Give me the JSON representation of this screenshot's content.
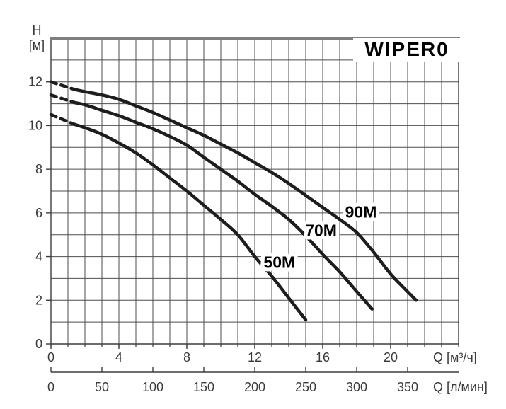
{
  "title": "WIPER0",
  "axes": {
    "y": {
      "name_line1": "H",
      "name_line2": "[м]",
      "ticks": [
        0,
        2,
        4,
        6,
        8,
        10,
        12
      ],
      "min": 0,
      "max": 14,
      "grid_step": 1
    },
    "x_m3h": {
      "unit_label": "Q [м³/ч]",
      "ticks": [
        0,
        4,
        8,
        12,
        16,
        20
      ],
      "min": 0,
      "max": 24,
      "grid_step": 1
    },
    "x_lmin": {
      "unit_label": "Q [л/мин]",
      "ticks": [
        0,
        50,
        100,
        150,
        200,
        250,
        300,
        350
      ],
      "lmin_per_m3h": 16.6667
    }
  },
  "chart_data": {
    "type": "line",
    "title": "WIPER0",
    "xlabel": "Q [м³/ч]",
    "xlabel_secondary": "Q [л/мин]",
    "ylabel": "H [м]",
    "xlim": [
      0,
      24
    ],
    "ylim": [
      0,
      14
    ],
    "grid": true,
    "legend_position": "inline-curve-labels",
    "series": [
      {
        "name": "50M",
        "dashed_lead": [
          [
            0,
            10.5
          ],
          [
            1.4,
            10.05
          ]
        ],
        "points": [
          [
            1.4,
            10.05
          ],
          [
            2,
            9.9
          ],
          [
            3,
            9.6
          ],
          [
            4,
            9.2
          ],
          [
            5,
            8.75
          ],
          [
            6,
            8.2
          ],
          [
            7,
            7.6
          ],
          [
            8,
            7.0
          ],
          [
            9,
            6.35
          ],
          [
            10,
            5.7
          ],
          [
            11,
            5.0
          ],
          [
            12,
            4.0
          ],
          [
            13,
            3.1
          ],
          [
            14,
            2.1
          ],
          [
            15,
            1.1
          ]
        ],
        "label_pos": [
          13.45,
          3.75
        ]
      },
      {
        "name": "70M",
        "dashed_lead": [
          [
            0,
            11.4
          ],
          [
            1.4,
            11.05
          ]
        ],
        "points": [
          [
            1.4,
            11.05
          ],
          [
            2,
            10.95
          ],
          [
            3,
            10.7
          ],
          [
            4,
            10.45
          ],
          [
            5,
            10.15
          ],
          [
            6,
            9.85
          ],
          [
            7,
            9.5
          ],
          [
            8,
            9.1
          ],
          [
            9,
            8.55
          ],
          [
            10,
            8.0
          ],
          [
            11,
            7.45
          ],
          [
            12,
            6.85
          ],
          [
            13,
            6.3
          ],
          [
            14,
            5.7
          ],
          [
            15,
            4.95
          ],
          [
            16,
            4.1
          ],
          [
            17,
            3.3
          ],
          [
            18,
            2.4
          ],
          [
            18.9,
            1.6
          ]
        ],
        "label_pos": [
          15.9,
          5.2
        ]
      },
      {
        "name": "90M",
        "dashed_lead": [
          [
            0,
            12.0
          ],
          [
            1.4,
            11.65
          ]
        ],
        "points": [
          [
            1.4,
            11.65
          ],
          [
            2,
            11.55
          ],
          [
            3,
            11.4
          ],
          [
            4,
            11.2
          ],
          [
            5,
            10.9
          ],
          [
            6,
            10.6
          ],
          [
            7,
            10.25
          ],
          [
            8,
            9.9
          ],
          [
            9,
            9.55
          ],
          [
            10,
            9.15
          ],
          [
            11,
            8.75
          ],
          [
            12,
            8.3
          ],
          [
            13,
            7.85
          ],
          [
            14,
            7.35
          ],
          [
            15,
            6.8
          ],
          [
            16,
            6.25
          ],
          [
            17,
            5.7
          ],
          [
            18,
            5.1
          ],
          [
            19,
            4.2
          ],
          [
            20,
            3.2
          ],
          [
            20.8,
            2.55
          ],
          [
            21.5,
            2.0
          ]
        ],
        "label_pos": [
          18.25,
          6.05
        ]
      }
    ],
    "colors": {
      "curve": "#1d1d1d",
      "grid": "#4e4e4e",
      "border": "#3d3d3d",
      "top_border": "#7e7e7e",
      "tick_text": "#3a3a3a",
      "curve_label_text": "#000000",
      "title_text": "#000000",
      "background": "#ffffff"
    }
  }
}
